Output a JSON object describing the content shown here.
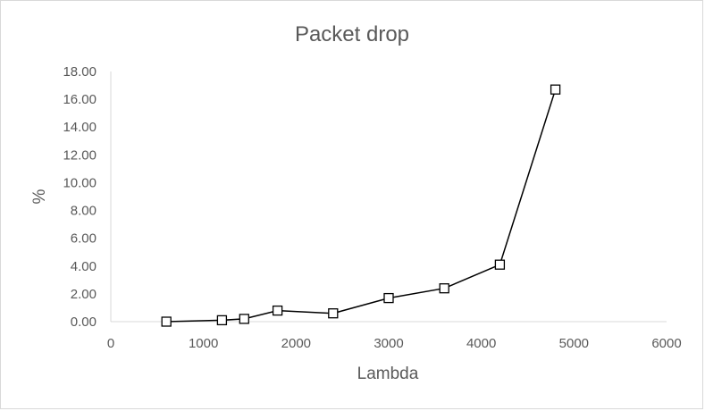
{
  "chart_data": {
    "type": "scatter",
    "title": "Packet drop",
    "xlabel": "Lambda",
    "ylabel": "%",
    "xlim": [
      0,
      6000
    ],
    "ylim": [
      0,
      18
    ],
    "xticks": [
      0,
      1000,
      2000,
      3000,
      4000,
      5000,
      6000
    ],
    "yticks": [
      0,
      2,
      4,
      6,
      8,
      10,
      12,
      14,
      16,
      18
    ],
    "ytick_labels": [
      "0.00",
      "2.00",
      "4.00",
      "6.00",
      "8.00",
      "10.00",
      "12.00",
      "14.00",
      "16.00",
      "18.00"
    ],
    "xtick_labels": [
      "0",
      "1000",
      "2000",
      "3000",
      "4000",
      "5000",
      "6000"
    ],
    "grid": false,
    "marker": "square",
    "connect_lines": true,
    "line_color": "#000000",
    "series": [
      {
        "x": [
          600,
          1200,
          1440,
          1800,
          2400,
          3000,
          3600,
          4200,
          4800
        ],
        "y": [
          0.0,
          0.1,
          0.2,
          0.8,
          0.6,
          1.7,
          2.4,
          4.1,
          16.7
        ]
      }
    ]
  }
}
